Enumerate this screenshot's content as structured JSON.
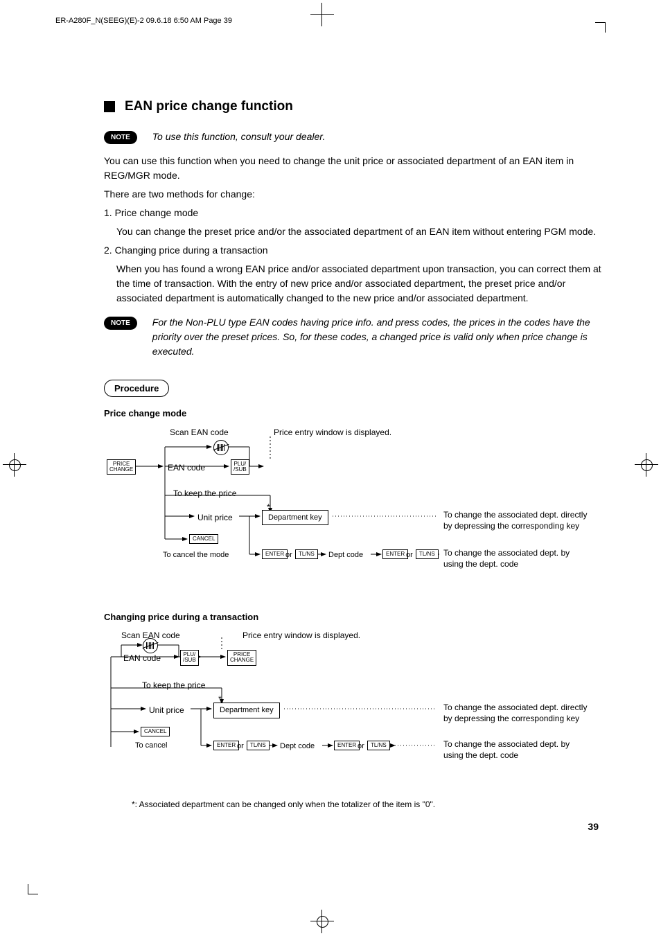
{
  "header_line": "ER-A280F_N(SEEG)(E)-2  09.6.18  6:50 AM  Page 39",
  "section_title": "EAN price change function",
  "note_label": "NOTE",
  "note1": "To use this function, consult your dealer.",
  "para1": "You can use this function when you need to change the unit price or associated department of an EAN item in REG/MGR mode.",
  "para2": "There are two methods for change:",
  "li1_label": "1.  Price change mode",
  "li1_body": "You can change the preset price and/or the associated department of an EAN item without entering PGM mode.",
  "li2_label": "2.  Changing price during a transaction",
  "li2_body": "When you has found a wrong EAN price and/or associated department upon transaction, you can correct them at the time of transaction. With the entry of new price and/or associated department, the preset price and/or associated department is automatically changed to the new price and/or associated department.",
  "note2": "For the Non-PLU type EAN codes having price info. and press codes, the prices in the codes have the priority over the preset prices. So, for these codes, a changed price is valid only when price change is executed.",
  "procedure_label": "Procedure",
  "sub1": "Price change mode",
  "sub2": "Changing price during a transaction",
  "footnote": "*:  Associated department can be changed only when the totalizer of the item is \"0\".",
  "labels": {
    "scan_ean": "Scan EAN code",
    "price_window": "Price entry window is displayed.",
    "ean_code": "EAN code",
    "to_keep": "To keep the price",
    "unit_price": "Unit price",
    "dept_key": "Department key",
    "to_cancel_mode": "To cancel the mode",
    "to_cancel": "To cancel",
    "or": "or",
    "dept_code": "Dept code",
    "star": "*"
  },
  "desc": {
    "dept_direct": "To change the associated dept. directly by depressing the corresponding key",
    "dept_code": "To change the associated dept. by using the dept. code"
  },
  "keys": {
    "price_change": "PRICE\nCHANGE",
    "plu_sub": "PLU/\n /SUB",
    "cancel": "CANCEL",
    "enter": "ENTER",
    "tlns": "TL/NS"
  },
  "page_number": "39"
}
